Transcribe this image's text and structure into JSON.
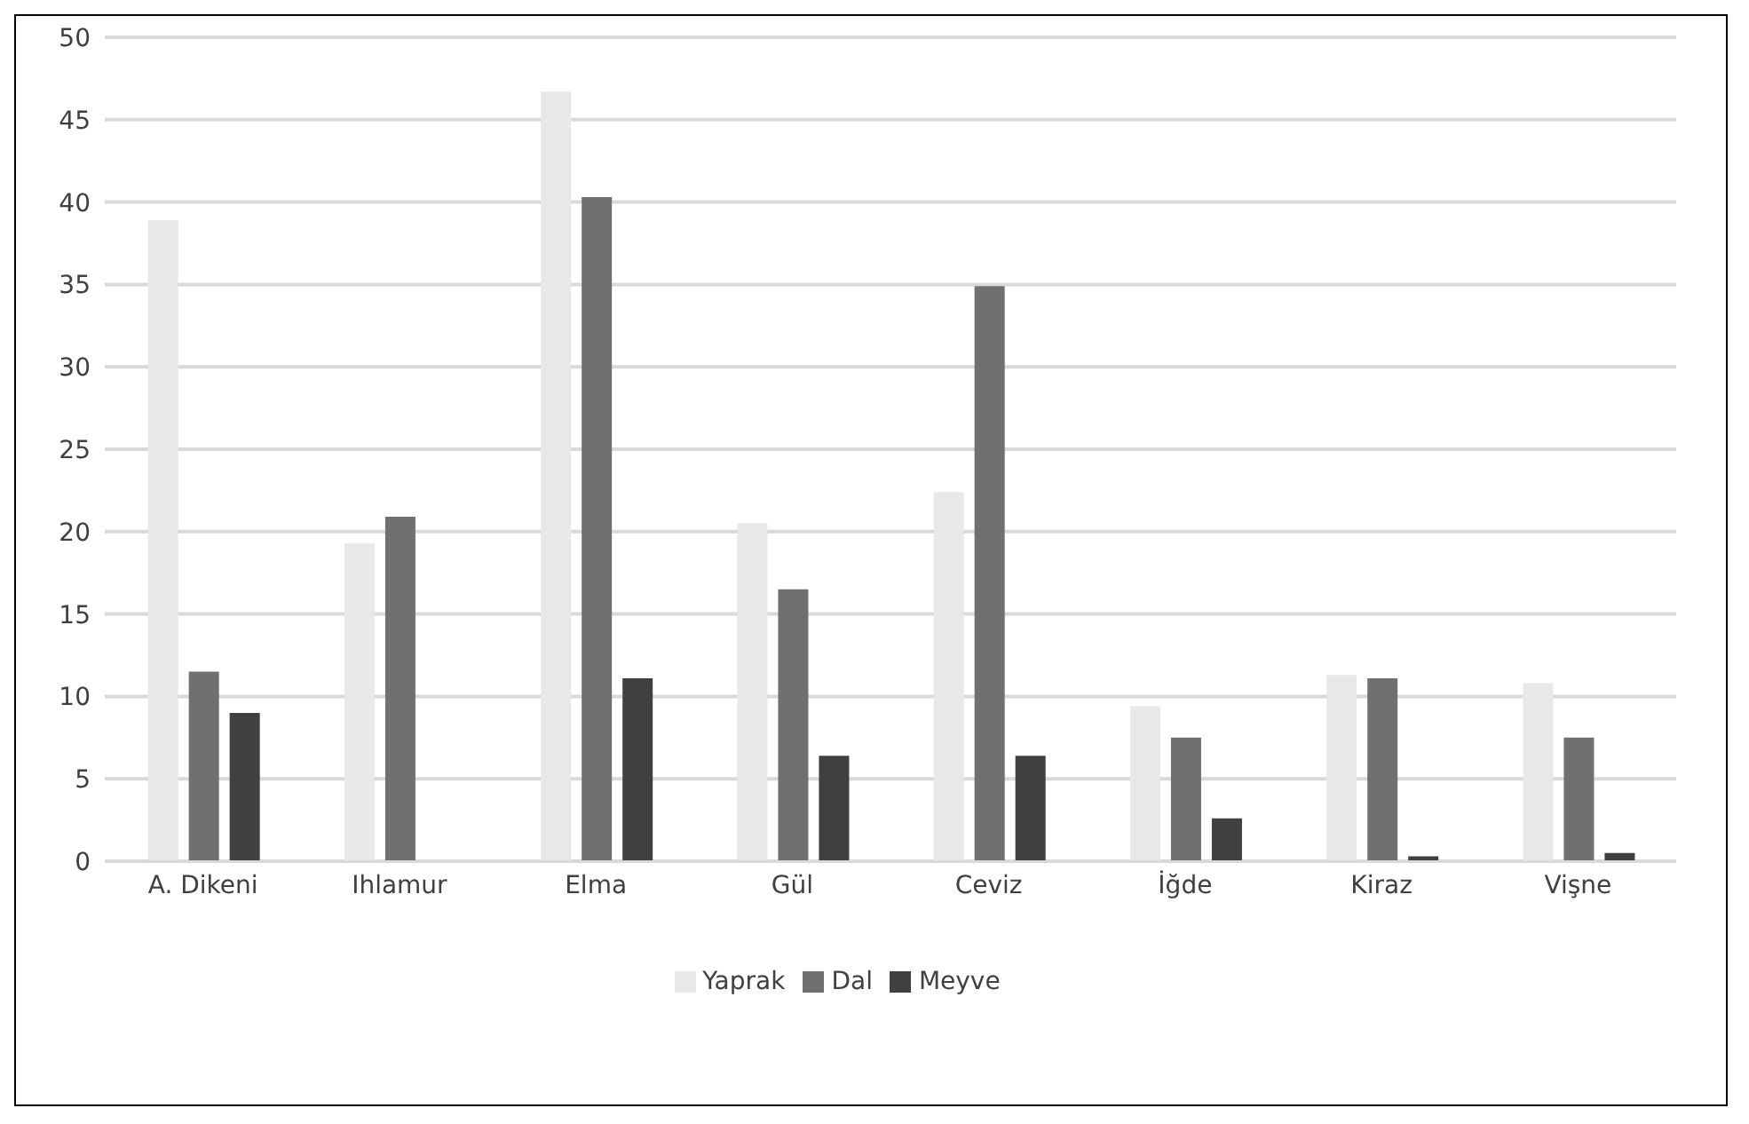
{
  "chart_data": {
    "type": "bar",
    "categories": [
      "A. Dikeni",
      "Ihlamur",
      "Elma",
      "Gül",
      "Ceviz",
      "İğde",
      "Kiraz",
      "Vişne"
    ],
    "series": [
      {
        "name": "Yaprak",
        "color": "#e8e8e8",
        "values": [
          38.9,
          19.3,
          46.7,
          20.5,
          22.4,
          9.4,
          11.3,
          10.8
        ]
      },
      {
        "name": "Dal",
        "color": "#707070",
        "values": [
          11.5,
          20.9,
          40.3,
          16.5,
          34.9,
          7.5,
          11.1,
          7.5
        ]
      },
      {
        "name": "Meyve",
        "color": "#404040",
        "values": [
          9.0,
          0,
          11.1,
          6.4,
          6.4,
          2.6,
          0.3,
          0.5
        ]
      }
    ],
    "ylim": [
      0,
      50
    ],
    "yticks": [
      0,
      5,
      10,
      15,
      20,
      25,
      30,
      35,
      40,
      45,
      50
    ],
    "grid": "y",
    "legend": "bottom"
  }
}
